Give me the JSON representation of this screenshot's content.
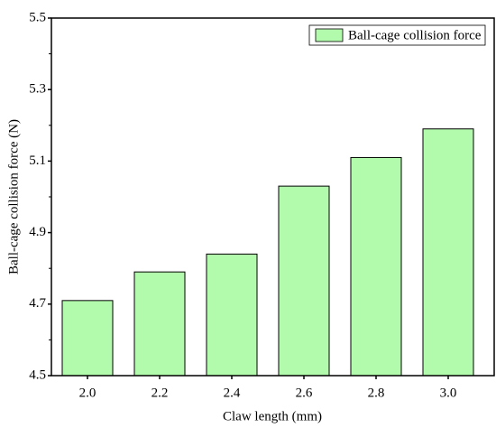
{
  "chart_data": {
    "type": "bar",
    "x_label": "Claw length (mm)",
    "y_label": "Ball-cage collision force (N)",
    "categories": [
      "2.0",
      "2.2",
      "2.4",
      "2.6",
      "2.8",
      "3.0"
    ],
    "series": [
      {
        "name": "Ball-cage collision force",
        "color": "#b3fbac",
        "values": [
          4.71,
          4.79,
          4.84,
          5.03,
          5.11,
          5.19
        ]
      }
    ],
    "ylim": [
      4.5,
      5.5
    ],
    "yticks": [
      4.5,
      4.7,
      4.9,
      5.1,
      5.3,
      5.5
    ],
    "legend": "top-right"
  }
}
